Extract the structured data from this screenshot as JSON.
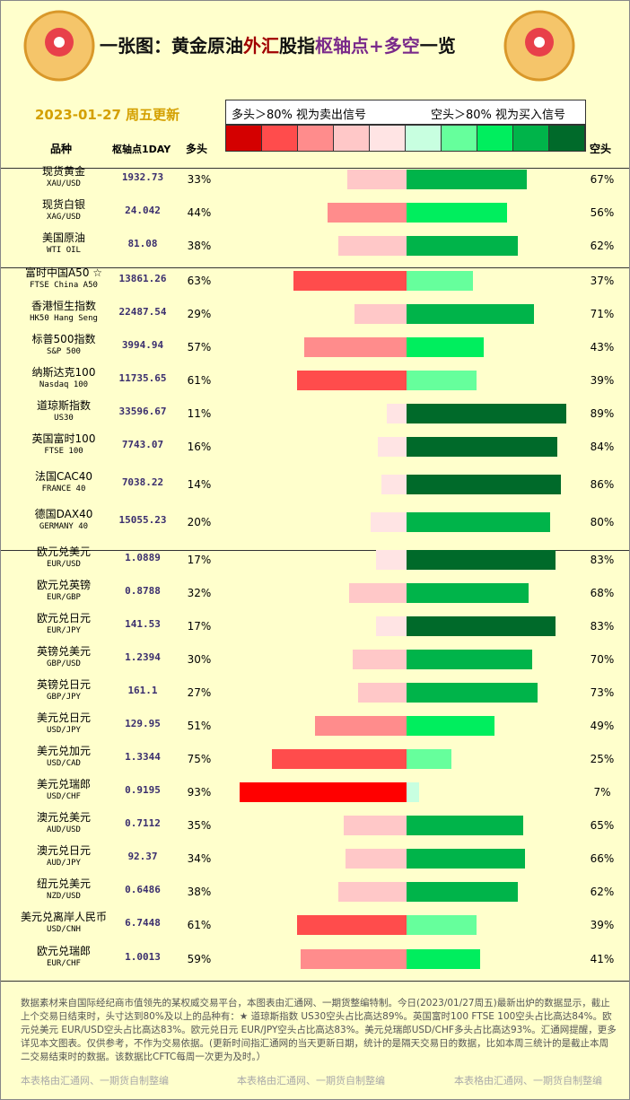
{
  "header": {
    "title_parts": [
      {
        "text": "一张图：黄金原油",
        "color": "#111111"
      },
      {
        "text": "外汇",
        "color": "#a00000"
      },
      {
        "text": "股指",
        "color": "#111111"
      },
      {
        "text": "枢轴点",
        "color": "#7a2a8a"
      },
      {
        "text": "+多空",
        "color": "#7a2a8a"
      },
      {
        "text": "一览",
        "color": "#111111"
      }
    ],
    "date": "2023-01-27 周五更新"
  },
  "legend": {
    "long_note": "多头＞80% 视为卖出信号",
    "short_note": "空头＞80% 视为买入信号",
    "colors": [
      "#d40000",
      "#ff4c4c",
      "#ff8c8c",
      "#ffc8c8",
      "#ffe4e4",
      "#c8ffe0",
      "#66ff9c",
      "#00ee5e",
      "#00b44a",
      "#006a2a"
    ]
  },
  "columns": {
    "name": "品种",
    "pivot": "枢轴点1DAY",
    "long": "多头",
    "short": "空头"
  },
  "groups": [
    {
      "rows": [
        {
          "name": "现货黄金",
          "code": "XAU/USD",
          "pivot": "1932.73",
          "long": 33,
          "long_label": "33%",
          "short": 67,
          "short_label": "67%",
          "long_color": "#ffc8c8",
          "short_color": "#00b44a"
        },
        {
          "name": "现货白银",
          "code": "XAG/USD",
          "pivot": "24.042",
          "long": 44,
          "long_label": "44%",
          "short": 56,
          "short_label": "56%",
          "long_color": "#ff8c8c",
          "short_color": "#00ee5e"
        },
        {
          "name": "美国原油",
          "code": "WTI OIL",
          "pivot": "81.08",
          "long": 38,
          "long_label": "38%",
          "short": 62,
          "short_label": "62%",
          "long_color": "#ffc8c8",
          "short_color": "#00b44a"
        }
      ]
    },
    {
      "rows": [
        {
          "name": "富时中国A50 ☆",
          "code": "FTSE China A50",
          "pivot": "13861.26",
          "long": 63,
          "long_label": "63%",
          "short": 37,
          "short_label": "37%",
          "long_color": "#ff4c4c",
          "short_color": "#66ff9c"
        },
        {
          "name": "香港恒生指数",
          "code": "HK50 Hang Seng",
          "pivot": "22487.54",
          "long": 29,
          "long_label": "29%",
          "short": 71,
          "short_label": "71%",
          "long_color": "#ffc8c8",
          "short_color": "#00b44a"
        },
        {
          "name": "标普500指数",
          "code": "S&P 500",
          "pivot": "3994.94",
          "long": 57,
          "long_label": "57%",
          "short": 43,
          "short_label": "43%",
          "long_color": "#ff8c8c",
          "short_color": "#00ee5e"
        },
        {
          "name": "纳斯达克100",
          "code": "Nasdaq 100",
          "pivot": "11735.65",
          "long": 61,
          "long_label": "61%",
          "short": 39,
          "short_label": "39%",
          "long_color": "#ff4c4c",
          "short_color": "#66ff9c"
        },
        {
          "name": "道琼斯指数",
          "code": "US30",
          "pivot": "33596.67",
          "long": 11,
          "long_label": "11%",
          "short": 89,
          "short_label": "89%",
          "long_color": "#ffe4e4",
          "short_color": "#006a2a"
        },
        {
          "name": "英国富时100",
          "code": "FTSE 100",
          "pivot": "7743.07",
          "long": 16,
          "long_label": "16%",
          "short": 84,
          "short_label": "84%",
          "long_color": "#ffe4e4",
          "short_color": "#006a2a"
        },
        {
          "name": "法国CAC40",
          "code": "FRANCE 40",
          "pivot": "7038.22",
          "long": 14,
          "long_label": "14%",
          "short": 86,
          "short_label": "86%",
          "long_color": "#ffe4e4",
          "short_color": "#006a2a"
        },
        {
          "name": "德国DAX40",
          "code": "GERMANY 40",
          "pivot": "15055.23",
          "long": 20,
          "long_label": "20%",
          "short": 80,
          "short_label": "80%",
          "long_color": "#ffe4e4",
          "short_color": "#00b44a"
        }
      ]
    },
    {
      "rows": [
        {
          "name": "欧元兑美元",
          "code": "EUR/USD",
          "pivot": "1.0889",
          "long": 17,
          "long_label": "17%",
          "short": 83,
          "short_label": "83%",
          "long_color": "#ffe4e4",
          "short_color": "#006a2a"
        },
        {
          "name": "欧元兑英镑",
          "code": "EUR/GBP",
          "pivot": "0.8788",
          "long": 32,
          "long_label": "32%",
          "short": 68,
          "short_label": "68%",
          "long_color": "#ffc8c8",
          "short_color": "#00b44a"
        },
        {
          "name": "欧元兑日元",
          "code": "EUR/JPY",
          "pivot": "141.53",
          "long": 17,
          "long_label": "17%",
          "short": 83,
          "short_label": "83%",
          "long_color": "#ffe4e4",
          "short_color": "#006a2a"
        },
        {
          "name": "英镑兑美元",
          "code": "GBP/USD",
          "pivot": "1.2394",
          "long": 30,
          "long_label": "30%",
          "short": 70,
          "short_label": "70%",
          "long_color": "#ffc8c8",
          "short_color": "#00b44a"
        },
        {
          "name": "英镑兑日元",
          "code": "GBP/JPY",
          "pivot": "161.1",
          "long": 27,
          "long_label": "27%",
          "short": 73,
          "short_label": "73%",
          "long_color": "#ffc8c8",
          "short_color": "#00b44a"
        },
        {
          "name": "美元兑日元",
          "code": "USD/JPY",
          "pivot": "129.95",
          "long": 51,
          "long_label": "51%",
          "short": 49,
          "short_label": "49%",
          "long_color": "#ff8c8c",
          "short_color": "#00ee5e"
        },
        {
          "name": "美元兑加元",
          "code": "USD/CAD",
          "pivot": "1.3344",
          "long": 75,
          "long_label": "75%",
          "short": 25,
          "short_label": "25%",
          "long_color": "#ff4c4c",
          "short_color": "#66ff9c"
        },
        {
          "name": "美元兑瑞郎",
          "code": "USD/CHF",
          "pivot": "0.9195",
          "long": 93,
          "long_label": "93%",
          "short": 7,
          "short_label": "7%",
          "long_color": "#ff0000",
          "short_color": "#c8ffe0"
        },
        {
          "name": "澳元兑美元",
          "code": "AUD/USD",
          "pivot": "0.7112",
          "long": 35,
          "long_label": "35%",
          "short": 65,
          "short_label": "65%",
          "long_color": "#ffc8c8",
          "short_color": "#00b44a"
        },
        {
          "name": "澳元兑日元",
          "code": "AUD/JPY",
          "pivot": "92.37",
          "long": 34,
          "long_label": "34%",
          "short": 66,
          "short_label": "66%",
          "long_color": "#ffc8c8",
          "short_color": "#00b44a"
        },
        {
          "name": "纽元兑美元",
          "code": "NZD/USD",
          "pivot": "0.6486",
          "long": 38,
          "long_label": "38%",
          "short": 62,
          "short_label": "62%",
          "long_color": "#ffc8c8",
          "short_color": "#00b44a"
        },
        {
          "name": "美元兑离岸人民币",
          "code": "USD/CNH",
          "pivot": "6.7448",
          "long": 61,
          "long_label": "61%",
          "short": 39,
          "short_label": "39%",
          "long_color": "#ff4c4c",
          "short_color": "#66ff9c"
        },
        {
          "name": "欧元兑瑞郎",
          "code": "EUR/CHF",
          "pivot": "1.0013",
          "long": 59,
          "long_label": "59%",
          "short": 41,
          "short_label": "41%",
          "long_color": "#ff8c8c",
          "short_color": "#00ee5e"
        }
      ]
    }
  ],
  "footer": {
    "text": "数据素材来自国际经纪商市值领先的某权威交易平台，本图表由汇通网、一期货整编特制。今日(2023/01/27周五)最新出炉的数据显示，截止上个交易日结束时，头寸达到80%及以上的品种有：★ 道琼斯指数 US30空头占比高达89%。英国富时100 FTSE 100空头占比高达84%。欧元兑美元 EUR/USD空头占比高达83%。欧元兑日元 EUR/JPY空头占比高达83%。美元兑瑞郎USD/CHF多头占比高达93%。汇通网提醒，更多详见本文图表。仅供参考，不作为交易依据。(更新时间指汇通网的当天更新日期，统计的是隔天交易日的数据，比如本周三统计的是截止本周二交易结束时的数据。该数据比CFTC每周一次更为及时。）",
    "watermark": "本表格由汇通网、一期货自制整编"
  }
}
